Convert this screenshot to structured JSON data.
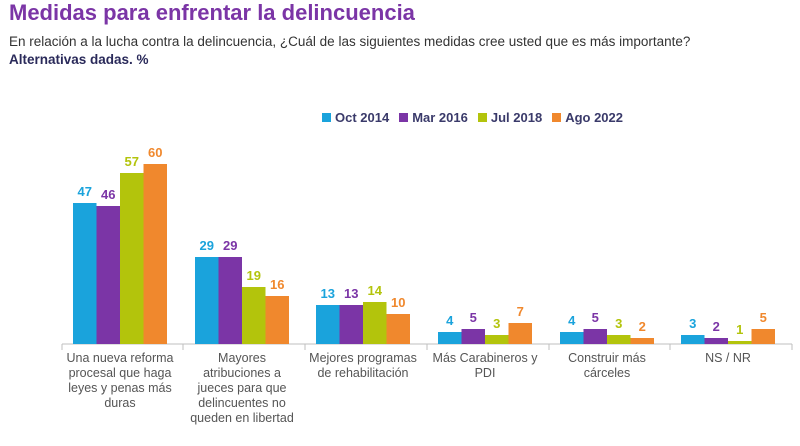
{
  "header": {
    "title": "Medidas para enfrentar la delincuencia",
    "subtitle": "En relación a la lucha contra la delincuencia, ¿Cuál de las siguientes medidas cree usted que es más importante?",
    "subtitle2": "Alternativas dadas. %"
  },
  "chart_data": {
    "type": "bar",
    "categories": [
      [
        "Una nueva reforma",
        "procesal que haga",
        "leyes y penas más",
        "duras"
      ],
      [
        "Mayores",
        "atribuciones a",
        "jueces para que",
        "delincuentes no",
        "queden en libertad"
      ],
      [
        "Mejores programas",
        "de rehabilitación"
      ],
      [
        "Más Carabineros y",
        "PDI"
      ],
      [
        "Construir más",
        "cárceles"
      ],
      [
        "NS / NR"
      ]
    ],
    "series": [
      {
        "name": "Oct 2014",
        "color": "#1aa3dc",
        "values": [
          47,
          29,
          13,
          4,
          4,
          3
        ]
      },
      {
        "name": "Mar 2016",
        "color": "#7b35a6",
        "values": [
          46,
          29,
          13,
          5,
          5,
          2
        ]
      },
      {
        "name": "Jul 2018",
        "color": "#b3c40c",
        "values": [
          57,
          19,
          14,
          3,
          3,
          1
        ]
      },
      {
        "name": "Ago 2022",
        "color": "#f0882d",
        "values": [
          60,
          16,
          10,
          7,
          2,
          5
        ]
      }
    ],
    "ylim": [
      0,
      60
    ],
    "legend_position": "top-right",
    "grid": false
  }
}
